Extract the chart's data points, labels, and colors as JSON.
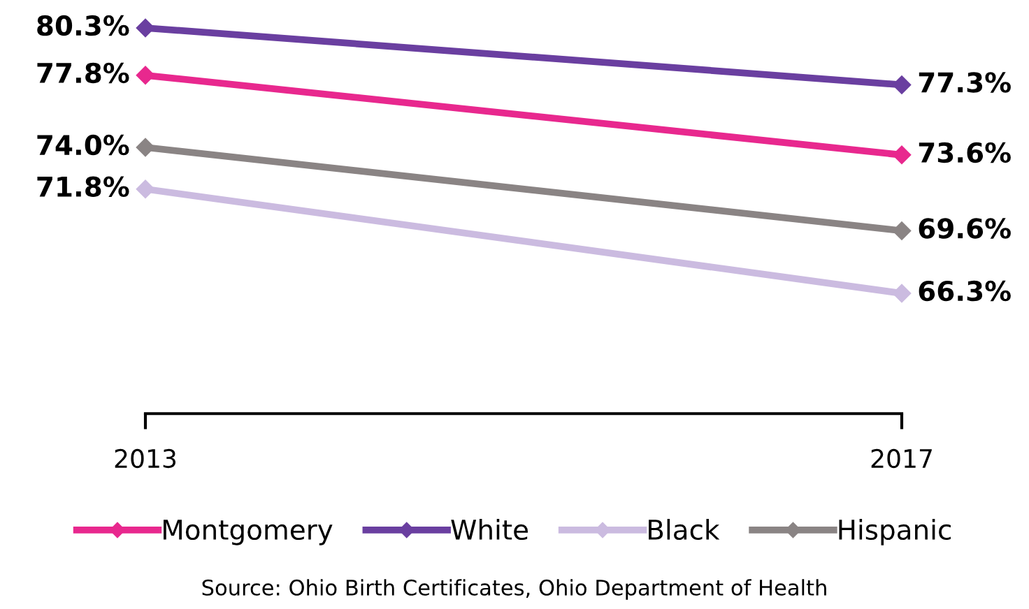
{
  "chart_data": {
    "type": "line",
    "categories": [
      "2013",
      "2017"
    ],
    "marker": "diamond",
    "legend": "bottom",
    "grid": false,
    "tick_labels": "x",
    "series": [
      {
        "name": "Montgomery",
        "color": "#e8288e",
        "values": [
          77.8,
          73.6
        ],
        "value_labels": [
          "77.8%",
          "73.6%"
        ]
      },
      {
        "name": "White",
        "color": "#6a3fa0",
        "values": [
          80.3,
          77.3
        ],
        "value_labels": [
          "80.3%",
          "77.3%"
        ]
      },
      {
        "name": "Black",
        "color": "#cbbbe0",
        "values": [
          71.8,
          66.3
        ],
        "value_labels": [
          "71.8%",
          "66.3%"
        ]
      },
      {
        "name": "Hispanic",
        "color": "#8a8484",
        "values": [
          74.0,
          69.6
        ],
        "value_labels": [
          "74.0%",
          "69.6%"
        ]
      }
    ],
    "annotations": [
      "Source: Ohio Birth Certificates, Ohio Department of Health"
    ]
  }
}
